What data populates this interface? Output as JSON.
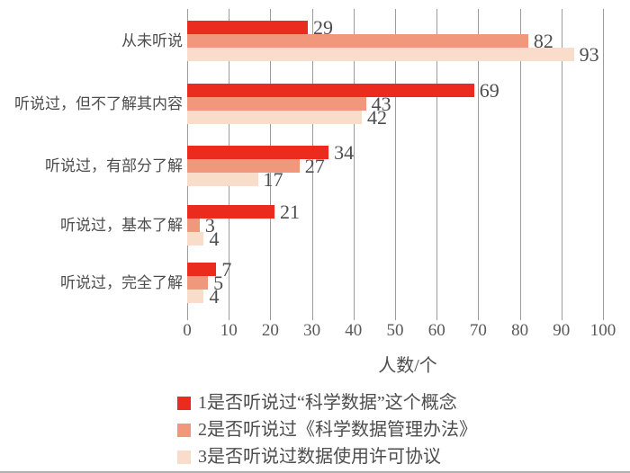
{
  "chart_data": {
    "type": "bar",
    "orientation": "horizontal",
    "title": "",
    "categories": [
      "从未听说",
      "听说过，但不了解其内容",
      "听说过，有部分了解",
      "听说过，基本了解",
      "听说过，完全了解"
    ],
    "series": [
      {
        "name": "1是否听说过“科学数据”这个概念",
        "color": "#ec2b1f",
        "values": [
          29,
          69,
          34,
          21,
          7
        ]
      },
      {
        "name": "2是否听说过《科学数据管理办法》",
        "color": "#f0977c",
        "values": [
          82,
          43,
          27,
          3,
          5
        ]
      },
      {
        "name": "3是否听说过数据使用许可协议",
        "color": "#fadccb",
        "values": [
          93,
          42,
          17,
          4,
          4
        ]
      }
    ],
    "xlabel": "人数/个",
    "ylabel": "",
    "xlim": [
      0,
      100
    ],
    "xticks": [
      0,
      10,
      20,
      30,
      40,
      50,
      60,
      70,
      80,
      90,
      100
    ],
    "grid": true,
    "value_labels": true,
    "legend_position": "bottom"
  },
  "colors": {
    "grid": "#9c9c9c",
    "label_text": "#4d4d4d",
    "tick_text": "#595959",
    "bottom_rule": "#b0b0b0"
  }
}
